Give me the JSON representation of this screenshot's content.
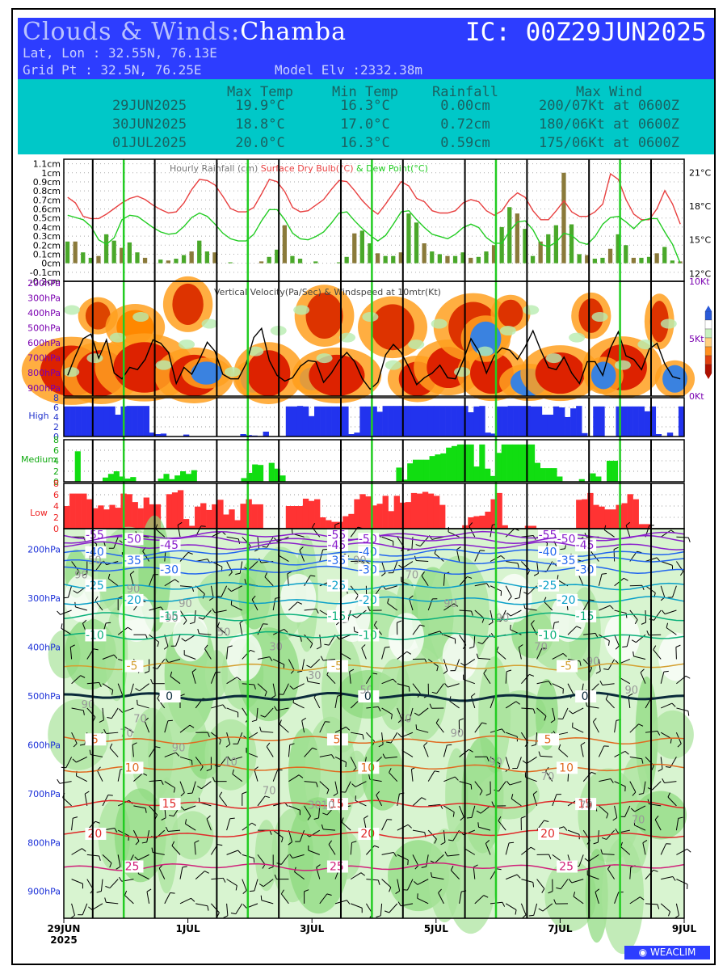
{
  "header": {
    "title_prefix": "Clouds & Winds:",
    "location": "Chamba",
    "init": "IC: 00Z29JUN2025",
    "latlon": "Lat, Lon : 32.55N, 76.13E",
    "gridpt": "Grid Pt  : 32.5N, 76.25E",
    "model_elv": "Model Elv :2332.38m"
  },
  "summary": {
    "headers": [
      "Max Temp",
      "Min Temp",
      "Rainfall",
      "Max Wind"
    ],
    "rows": [
      {
        "date": "29JUN2025",
        "max": "19.9°C",
        "min": "16.3°C",
        "rain": "0.00cm",
        "wind": "200/07Kt at 0600Z"
      },
      {
        "date": "30JUN2025",
        "max": "18.8°C",
        "min": "17.0°C",
        "rain": "0.72cm",
        "wind": "180/06Kt at 0600Z"
      },
      {
        "date": "01JUL2025",
        "max": "20.0°C",
        "min": "16.3°C",
        "rain": "0.59cm",
        "wind": "175/06Kt at 0600Z"
      }
    ]
  },
  "colors": {
    "header_bg": "#2d3dff",
    "summary_bg": "#00c8c8",
    "rain": "#4aa82a",
    "dry_bulb": "#e84040",
    "dew_point": "#22cc22",
    "high_cloud": "#2233ee",
    "medium_cloud": "#11dd11",
    "low_cloud": "#ff3333",
    "day_line": "#22cc22"
  },
  "chart_data": [
    {
      "type": "bar",
      "title": "Hourly Rainfall (cm)",
      "series_labels": [
        "Surface Dry Bulb(°C)",
        "& Dew Point(°C)"
      ],
      "y_ticks_left": [
        "1.1cm",
        "1cm",
        "0.9cm",
        "0.8cm",
        "0.7cm",
        "0.6cm",
        "0.5cm",
        "0.4cm",
        "0.3cm",
        "0.2cm",
        "0.1cm",
        "0cm",
        "-0.1cm",
        "-0.2cm"
      ],
      "y_ticks_right": [
        "21°C",
        "18°C",
        "15°C",
        "12°C"
      ],
      "ylim": [
        -0.2,
        1.15
      ],
      "temp_lim": [
        11.3,
        22.2
      ],
      "rain": [
        0.24,
        0.24,
        0.12,
        0.06,
        0.08,
        0.32,
        0.25,
        0.17,
        0.23,
        0.12,
        0.06,
        0,
        0.04,
        0.03,
        0.05,
        0.09,
        0.13,
        0.25,
        0.13,
        0.12,
        0,
        0.01,
        0,
        0,
        0,
        0.02,
        0.07,
        0.15,
        0.42,
        0.08,
        0.05,
        0,
        0.02,
        0,
        0,
        0.01,
        0.07,
        0.33,
        0.36,
        0.22,
        0.11,
        0.08,
        0.08,
        0.12,
        0.55,
        0.45,
        0.22,
        0.13,
        0.1,
        0.08,
        0.08,
        0.12,
        0.06,
        0.07,
        0.13,
        0.2,
        0.4,
        0.62,
        0.55,
        0.38,
        0.08,
        0.24,
        0.32,
        0.42,
        1.0,
        0.43,
        0.1,
        0.09,
        0.05,
        0.06,
        0.16,
        0.32,
        0.2,
        0.06,
        0.06,
        0.07,
        0.11,
        0.18,
        0.03,
        0.02
      ],
      "dry_bulb": [
        18.8,
        18.3,
        17.1,
        16.9,
        16.9,
        17.3,
        17.8,
        18.3,
        18.7,
        18.9,
        18.6,
        18.1,
        17.7,
        17.4,
        17.5,
        18.3,
        19.5,
        20.4,
        20.3,
        19.9,
        18.9,
        17.8,
        17.5,
        17.5,
        17.9,
        19.1,
        20.4,
        20.2,
        19.3,
        17.9,
        17.5,
        17.6,
        18.1,
        18.6,
        19.5,
        20.3,
        20.2,
        19.4,
        18.5,
        17.8,
        17.3,
        18.2,
        19.2,
        20.2,
        19.8,
        18.7,
        18.4,
        17.6,
        17.4,
        17.4,
        17.6,
        18.3,
        18.6,
        18.4,
        17.6,
        17.2,
        17.6,
        18.6,
        19.2,
        18.8,
        17.6,
        16.8,
        16.8,
        17.6,
        18.5,
        17.5,
        17.1,
        17.1,
        17.5,
        18.2,
        20.9,
        20.4,
        18.6,
        17.3,
        16.8,
        16.8,
        17.8,
        19.4,
        18.2,
        16.4
      ],
      "dew_point": [
        17.2,
        17.0,
        16.8,
        16.2,
        15.0,
        14.6,
        15.2,
        16.8,
        17.2,
        17.1,
        16.6,
        16.1,
        15.7,
        15.5,
        15.6,
        16.2,
        17.0,
        17.4,
        17.1,
        16.4,
        15.6,
        15.1,
        14.9,
        14.9,
        15.5,
        16.7,
        17.7,
        17.7,
        16.8,
        15.6,
        15.1,
        15.0,
        15.3,
        15.7,
        16.5,
        17.4,
        17.5,
        16.7,
        16.0,
        15.4,
        14.9,
        15.4,
        16.4,
        17.5,
        17.6,
        16.8,
        16.1,
        15.5,
        15.3,
        15.1,
        15.5,
        16.1,
        16.4,
        16.1,
        15.2,
        14.7,
        14.7,
        15.8,
        16.6,
        16.7,
        15.9,
        14.6,
        14.4,
        14.8,
        15.6,
        15.4,
        14.8,
        14.6,
        15.3,
        16.4,
        17.0,
        17.1,
        16.6,
        16.0,
        16.7,
        16.9,
        16.9,
        15.7,
        14.6,
        12.9
      ]
    },
    {
      "type": "heatmap",
      "title": "Vertical Velocity(Pa/Sec) & Windspeed at 10mtr(Kt)",
      "y_ticks": [
        "200hPa",
        "300hPa",
        "400hPa",
        "500hPa",
        "600hPa",
        "700hPa",
        "800hPa",
        "900hPa"
      ],
      "y_ticks_right": [
        "10Kt",
        "5Kt",
        "0Kt"
      ],
      "windspeed_lim": [
        0,
        10
      ],
      "windspeed": [
        1.8,
        3.5,
        5.0,
        5.4,
        3.3,
        4.9,
        2.0,
        1.5,
        2.5,
        2.3,
        3.2,
        4.9,
        4.6,
        3.8,
        1.1,
        2.5,
        1.9,
        3.2,
        4.7,
        3.9,
        1.9,
        1.5,
        1.5,
        2.8,
        5.1,
        5.9,
        3.1,
        1.8,
        1.3,
        1.6,
        2.6,
        3.1,
        3.0,
        1.2,
        2.0,
        3.1,
        3.8,
        3.0,
        1.5,
        0.6,
        1.2,
        3.6,
        4.5,
        3.8,
        2.5,
        1.0,
        1.6,
        2.0,
        2.7,
        1.6,
        1.5,
        3.1,
        5.0,
        3.9,
        2.0,
        3.5,
        4.2,
        4.0,
        3.2,
        4.3,
        5.7,
        4.0,
        2.5,
        2.3,
        3.4,
        2.0,
        1.1,
        3.0,
        3.0,
        1.8,
        4.2,
        5.6,
        3.5,
        3.2,
        2.3,
        4.1,
        4.6,
        2.8,
        1.7,
        1.5
      ]
    },
    {
      "type": "bar",
      "title": "High",
      "ylim": [
        0,
        8
      ],
      "y_ticks": [
        "8",
        "6",
        "4",
        "2",
        "0"
      ],
      "values": [
        6.2,
        6.2,
        6.2,
        6.2,
        6.2,
        6.2,
        6.2,
        6.2,
        6.2,
        4.5,
        6.2,
        6.3,
        6.3,
        6.3,
        6.3,
        0.8,
        0.5,
        0.6,
        0,
        0,
        0,
        0.4,
        0,
        0,
        0,
        0,
        0,
        0,
        0,
        0,
        0,
        0.5,
        0.3,
        0.2,
        0.1,
        1.0,
        0,
        0,
        0.1,
        6.2,
        6.2,
        6.3,
        6.2,
        4.2,
        6.2,
        6.2,
        6.2,
        6.2,
        6.2,
        6.2,
        0.5,
        0.8,
        6.2,
        6.2,
        6.2,
        5.1,
        6.3,
        6.3,
        6.3,
        6.3,
        6.3,
        6.3,
        6.3,
        6.3,
        6.3,
        6.3,
        6.3,
        6.3,
        6.3,
        6.3,
        6.3,
        5.0,
        6.2,
        6.3,
        0.8,
        0.6,
        6.2,
        6.2,
        6.3,
        6.3,
        6.3,
        6.3,
        6.2,
        6.2,
        4.5,
        4.5,
        6.2,
        6.0,
        4.0,
        5.8,
        6.3,
        0.7,
        0,
        6.2,
        6.2,
        0,
        0,
        6.2,
        6.2,
        6.2,
        6.2,
        6.2,
        5.2,
        6.2,
        0.5,
        0,
        0.8,
        0,
        6.2
      ]
    },
    {
      "type": "bar",
      "title": "Medium",
      "ylim": [
        0,
        8
      ],
      "y_ticks": [
        "8",
        "6",
        "4",
        "2",
        "0"
      ],
      "values": [
        0,
        0,
        5.8,
        0,
        0,
        0,
        0,
        0.8,
        1.5,
        2.0,
        1.0,
        0.6,
        0.9,
        0,
        0,
        0,
        0,
        0.6,
        1.5,
        0.5,
        1.2,
        2.0,
        1.5,
        2.2,
        0,
        0,
        0,
        0,
        0,
        0,
        0,
        0,
        0.7,
        1.7,
        3.3,
        3.2,
        0,
        3.6,
        2.5,
        1.2,
        0,
        0,
        0,
        0,
        0,
        0,
        0,
        0,
        0,
        0,
        0,
        0,
        0,
        0,
        0,
        0,
        0,
        0,
        0,
        0,
        2.7,
        0.4,
        3.5,
        4.2,
        4.2,
        4.2,
        4.9,
        5.2,
        5.4,
        6.5,
        6.8,
        7.1,
        7.1,
        7.1,
        2.9,
        7.1,
        2.5,
        1.1,
        5.5,
        7.1,
        7.1,
        7.1,
        7.1,
        7.1,
        7.1,
        3.6,
        2.6,
        2.6,
        2.6,
        1.0,
        0,
        0,
        0,
        0.5,
        0,
        1.6,
        1.0,
        0,
        4.0,
        4.0,
        0,
        0,
        0,
        0,
        0,
        0,
        0,
        0,
        0,
        0,
        0,
        0
      ]
    },
    {
      "type": "bar",
      "title": "Low",
      "ylim": [
        0,
        8
      ],
      "y_ticks": [
        "8",
        "6",
        "4",
        "2",
        "0"
      ],
      "values": [
        4.0,
        6.2,
        6.2,
        6.2,
        5.2,
        3.6,
        4.1,
        3.4,
        4.2,
        3.7,
        6.2,
        6.1,
        4.7,
        3.6,
        5.5,
        4.3,
        4.3,
        0,
        6.1,
        6.4,
        6.8,
        1.7,
        0.5,
        3.9,
        4.5,
        3.3,
        4.3,
        5.1,
        2.5,
        3.4,
        1.5,
        4.4,
        5.2,
        4.3,
        4.3,
        0,
        0,
        0,
        0,
        4.0,
        4.0,
        4.0,
        5.3,
        4.9,
        5.2,
        2.0,
        1.5,
        1.2,
        1.2,
        2.2,
        2.6,
        5.2,
        6.1,
        5.7,
        4.1,
        4.4,
        5.8,
        3.1,
        5.8,
        4.6,
        4.7,
        6.3,
        6.2,
        6.5,
        6.2,
        5.8,
        4.2,
        0,
        0,
        0,
        0.6,
        2.0,
        2.2,
        2.3,
        3.0,
        5.2,
        6.3,
        0.6,
        0,
        0,
        0,
        0.5,
        0.5,
        0,
        0,
        0,
        0,
        0,
        0,
        0,
        5.1,
        5.2,
        6.3,
        4.2,
        3.9,
        3.4,
        3.4,
        4.2,
        4.5,
        6.1,
        5.2,
        0.8,
        0.8,
        0,
        0,
        0,
        0,
        0,
        0
      ]
    },
    {
      "type": "heatmap",
      "title": "",
      "y_ticks": [
        "200hPa",
        "300hPa",
        "400hPa",
        "500hPa",
        "600hPa",
        "700hPa",
        "800hPa",
        "900hPa"
      ],
      "temperature_contours": [
        {
          "label": "-55",
          "level_hPa": 172
        },
        {
          "label": "-50",
          "level_hPa": 180
        },
        {
          "label": "-45",
          "level_hPa": 193
        },
        {
          "label": "-40",
          "level_hPa": 207
        },
        {
          "label": "-35",
          "level_hPa": 224
        },
        {
          "label": "-30",
          "level_hPa": 243
        },
        {
          "label": "-25",
          "level_hPa": 275
        },
        {
          "label": "-20",
          "level_hPa": 305
        },
        {
          "label": "-15",
          "level_hPa": 338
        },
        {
          "label": "-10",
          "level_hPa": 377
        },
        {
          "label": "-5",
          "level_hPa": 440
        },
        {
          "label": "0",
          "level_hPa": 502
        },
        {
          "label": "5",
          "level_hPa": 590
        },
        {
          "label": "10",
          "level_hPa": 648
        },
        {
          "label": "15",
          "level_hPa": 722
        },
        {
          "label": "20",
          "level_hPa": 783
        },
        {
          "label": "25",
          "level_hPa": 850
        }
      ],
      "humidity_labels": [
        "50",
        "70",
        "90",
        "10",
        "30",
        "3010",
        "50",
        "70",
        "90",
        "90",
        "70",
        "90",
        "70",
        "90",
        "90",
        "90",
        "50",
        "70",
        "30",
        "90",
        "70",
        "90",
        "90",
        "70",
        "70",
        "90",
        "90",
        "70",
        "90"
      ],
      "x_ticks": [
        {
          "label": "29JUN",
          "sub": "2025",
          "day": 0
        },
        {
          "label": "1JUL",
          "day": 2
        },
        {
          "label": "3JUL",
          "day": 4
        },
        {
          "label": "5JUL",
          "day": 6
        },
        {
          "label": "7JUL",
          "day": 8
        },
        {
          "label": "9JUL",
          "day": 10
        }
      ]
    }
  ],
  "logo": {
    "text": "WEACLIM"
  }
}
